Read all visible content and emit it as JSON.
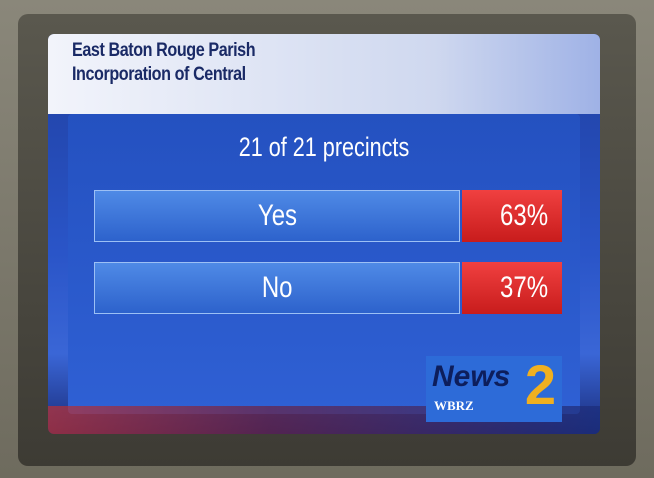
{
  "header": {
    "title_lines": [
      "East Baton Rouge Parish",
      "Incorporation of Central"
    ]
  },
  "results": {
    "precincts": "21 of 21 precincts",
    "rows": [
      {
        "choice": "Yes",
        "percent": "63%"
      },
      {
        "choice": "No",
        "percent": "37%"
      }
    ]
  },
  "logo": {
    "name": "News",
    "number": "2",
    "callsign": "WBRZ"
  }
}
